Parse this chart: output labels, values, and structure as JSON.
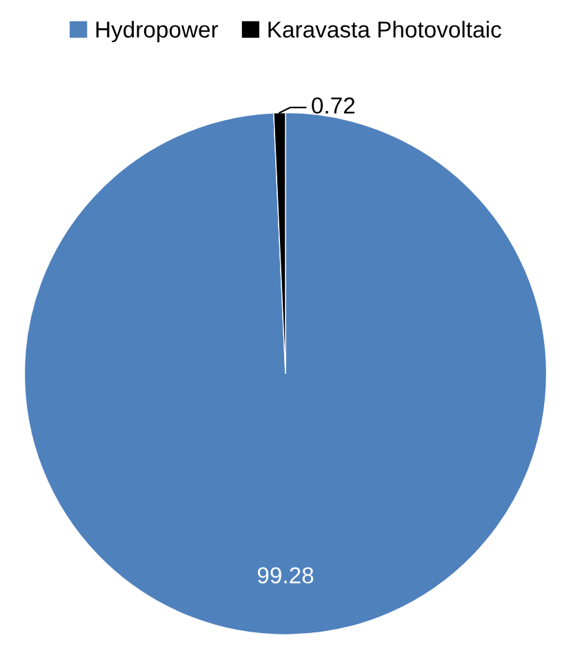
{
  "chart_data": {
    "type": "pie",
    "categories": [
      "Hydropower",
      "Karavasta Photovoltaic"
    ],
    "values": [
      99.28,
      0.72
    ],
    "colors": [
      "#4f81bd",
      "#000000"
    ],
    "data_labels": true,
    "legend": "top"
  }
}
